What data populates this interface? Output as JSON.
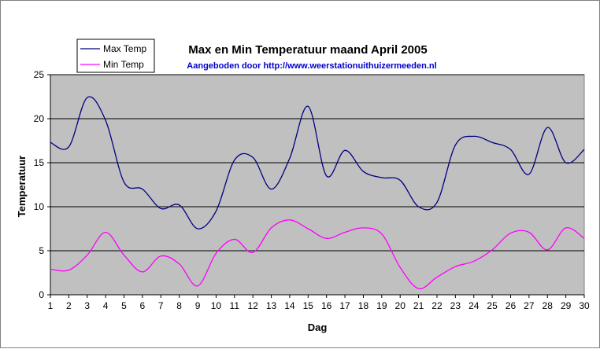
{
  "colors": {
    "plot_background": "#c0c0c0",
    "max_temp": "#000080",
    "min_temp": "#ff00ff",
    "subtitle": "#0000cc",
    "gridline": "#000000"
  },
  "chart_data": {
    "type": "line",
    "title": "Max en Min Temperatuur maand April 2005",
    "subtitle": "Aangeboden door http://www.weerstationuithuizermeeden.nl",
    "xlabel": "Dag",
    "ylabel": "Temperatuur",
    "ylim": [
      0,
      25
    ],
    "yticks": [
      0,
      5,
      10,
      15,
      20,
      25
    ],
    "x": [
      1,
      2,
      3,
      4,
      5,
      6,
      7,
      8,
      9,
      10,
      11,
      12,
      13,
      14,
      15,
      16,
      17,
      18,
      19,
      20,
      21,
      22,
      23,
      24,
      25,
      26,
      27,
      28,
      29,
      30
    ],
    "grid": "horizontal",
    "legend_position": "top-left",
    "series": [
      {
        "name": "Max Temp",
        "color_key": "max_temp",
        "values": [
          17.3,
          16.8,
          22.4,
          19.8,
          12.8,
          12.0,
          9.8,
          10.2,
          7.5,
          9.5,
          15.3,
          15.6,
          12.0,
          15.5,
          21.4,
          13.5,
          16.4,
          14.0,
          13.3,
          13.0,
          10.0,
          10.5,
          17.0,
          18.0,
          17.3,
          16.5,
          13.7,
          19.0,
          15.0,
          16.5
        ]
      },
      {
        "name": "Min Temp",
        "color_key": "min_temp",
        "values": [
          2.9,
          2.8,
          4.5,
          7.1,
          4.5,
          2.6,
          4.4,
          3.5,
          1.0,
          4.7,
          6.3,
          4.8,
          7.6,
          8.5,
          7.5,
          6.4,
          7.1,
          7.6,
          6.9,
          3.1,
          0.7,
          2.0,
          3.2,
          3.8,
          5.1,
          7.0,
          7.1,
          5.1,
          7.6,
          6.4
        ]
      }
    ]
  }
}
